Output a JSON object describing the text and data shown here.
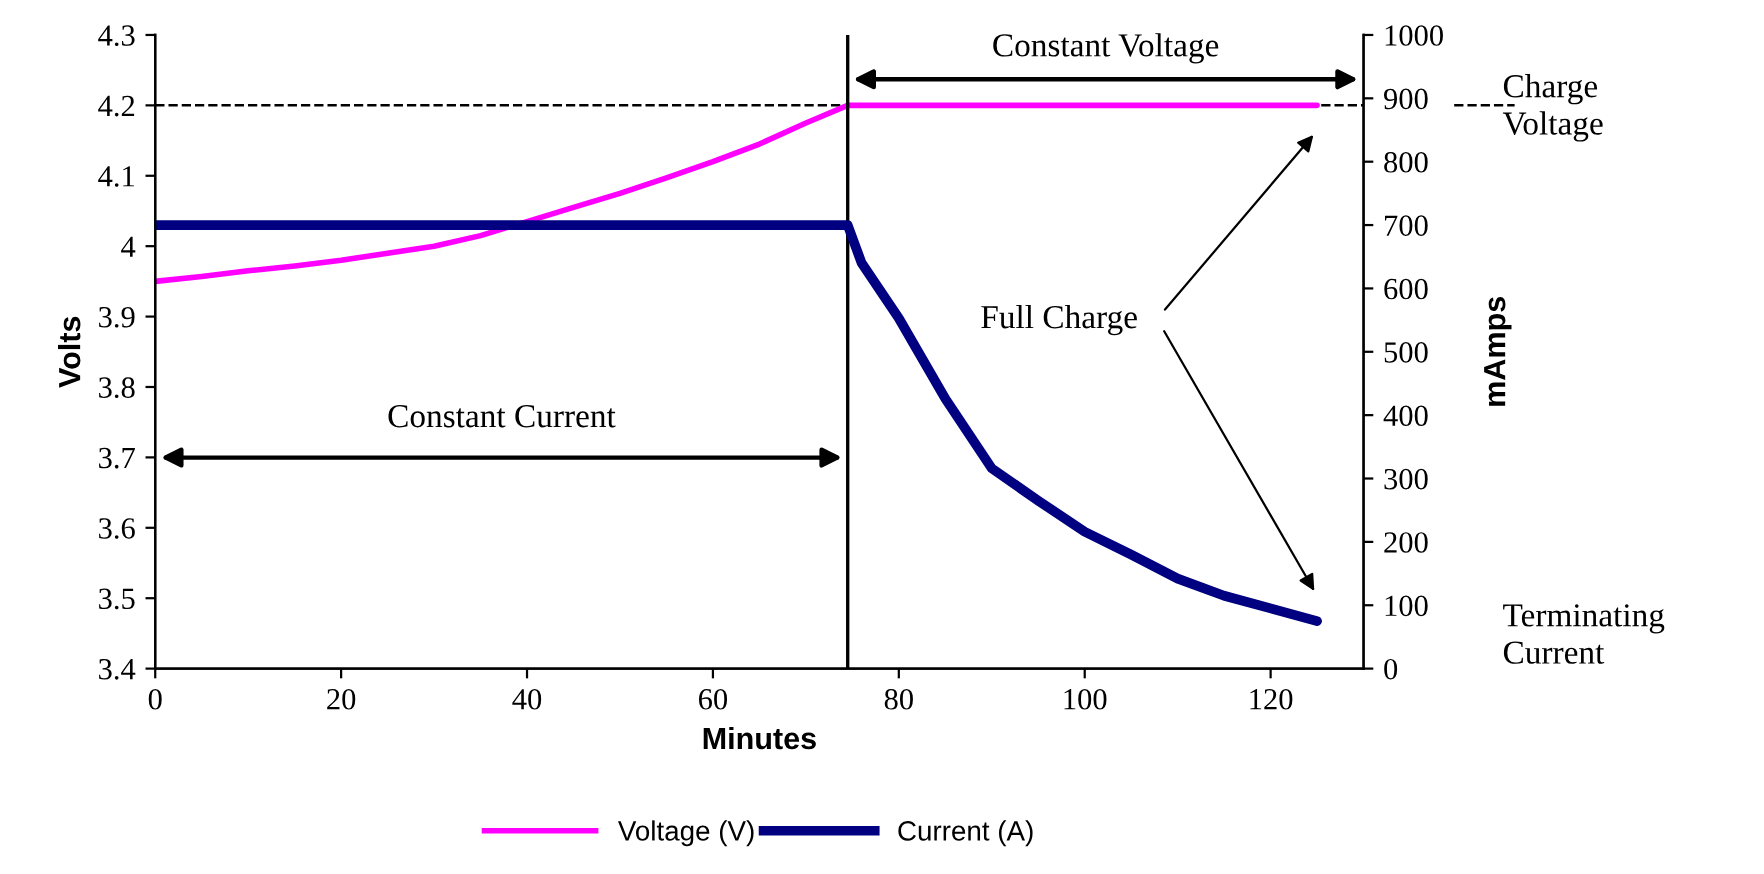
{
  "chart_data": {
    "type": "line",
    "xlabel": "Minutes",
    "ylabel": "Volts",
    "y2label": "mAmps",
    "xlim": [
      0,
      130
    ],
    "xticks": [
      0,
      20,
      40,
      60,
      80,
      100,
      120
    ],
    "ylim": [
      3.4,
      4.3
    ],
    "yticks": [
      3.4,
      3.5,
      3.6,
      3.7,
      3.8,
      3.9,
      4,
      4.1,
      4.2,
      4.3
    ],
    "y2lim": [
      0,
      1000
    ],
    "y2ticks": [
      0,
      100,
      200,
      300,
      400,
      500,
      600,
      700,
      800,
      900,
      1000
    ],
    "series": [
      {
        "name": "Voltage (V)",
        "color": "#ff00ff",
        "x": [
          0,
          5,
          10,
          15,
          20,
          25,
          30,
          35,
          40,
          45,
          50,
          55,
          60,
          65,
          70,
          74.5,
          125
        ],
        "values": [
          3.95,
          3.957,
          3.965,
          3.972,
          3.98,
          3.99,
          4.0,
          4.015,
          4.035,
          4.055,
          4.075,
          4.097,
          4.12,
          4.145,
          4.175,
          4.2,
          4.2
        ]
      },
      {
        "name": "Current (A)",
        "color": "#000080",
        "axis": "y2",
        "x": [
          0,
          74.5,
          76,
          80,
          85,
          90,
          95,
          100,
          105,
          110,
          115,
          120,
          125
        ],
        "values": [
          700,
          700,
          640,
          553,
          426,
          316,
          265,
          216,
          180,
          142,
          115,
          95,
          75
        ]
      }
    ],
    "ref_lines": [
      {
        "axis": "y",
        "value": 4.2,
        "line_style": "dashed",
        "color": "#000000"
      },
      {
        "axis": "x",
        "value": 74.5,
        "color": "#000000",
        "line_style": "solid"
      }
    ],
    "annotations": [
      "Constant Current",
      "Constant Voltage",
      "Full Charge",
      "Terminating\nCurrent",
      "Charge\nVoltage"
    ],
    "legend": "bottom",
    "grid": false,
    "marker": "none",
    "line_style": "solid"
  }
}
